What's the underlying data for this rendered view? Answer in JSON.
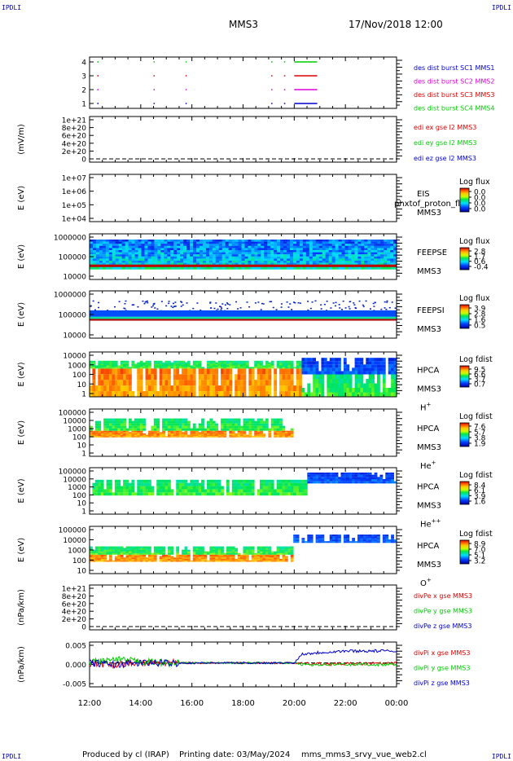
{
  "header": {
    "corner_label": "IPDLI",
    "spacecraft": "MMS3",
    "datetime": "17/Nov/2018 12:00"
  },
  "footer": {
    "producer": "Produced by cl (IRAP)",
    "printing": "Printing date: 03/May/2024",
    "script": "mms_mms3_srvy_vue_web2.cl"
  },
  "x_axis": {
    "ticks": [
      "12:00",
      "14:00",
      "16:00",
      "18:00",
      "20:00",
      "22:00",
      "00:00"
    ],
    "range_hours": [
      12,
      24
    ]
  },
  "colors": {
    "red": "#dd0000",
    "green": "#00cc00",
    "blue": "#0000cc",
    "magenta": "#dd00dd"
  },
  "panels": [
    {
      "id": "burst",
      "yticks": [
        "4",
        "3",
        "2",
        "1"
      ],
      "legend": [
        {
          "text": "des dist burst SC1 MMS1",
          "color": "#0000cc"
        },
        {
          "text": "des dist burst SC2 MMS2",
          "color": "#dd00dd"
        },
        {
          "text": "des dist burst SC3 MMS3",
          "color": "#dd0000"
        },
        {
          "text": "des dist burst SC4 MMS4",
          "color": "#00cc00"
        }
      ]
    },
    {
      "id": "edi",
      "ylabel": "(mV/m)",
      "yticks": [
        "1e+21",
        "8e+20",
        "6e+20",
        "4e+20",
        "2e+20",
        "0"
      ],
      "legend": [
        {
          "text": "edi ex gse l2 MMS3",
          "color": "#dd0000"
        },
        {
          "text": "edi ey gse l2 MMS3",
          "color": "#00cc00"
        },
        {
          "text": "edi ez gse l2 MMS3",
          "color": "#0000cc"
        }
      ]
    },
    {
      "id": "eis",
      "ylabel": "E (eV)",
      "yticks": [
        "1e+07",
        "1e+06",
        "1e+05",
        "1e+04"
      ],
      "inst": [
        "EIS",
        "MMS3"
      ],
      "overlay": "phxtof_proton_fl",
      "cb_title": "Log flux",
      "cb_ticks": [
        "0.0",
        "0.0",
        "0.0",
        "0.0"
      ]
    },
    {
      "id": "feeps_e",
      "ylabel": "E (eV)",
      "yticks": [
        "1000000",
        "100000",
        "10000"
      ],
      "inst": [
        "FEEPSE",
        "MMS3"
      ],
      "cb_title": "Log flux",
      "cb_ticks": [
        "2.8",
        "1.7",
        "0.6",
        "-0.4"
      ]
    },
    {
      "id": "feeps_i",
      "ylabel": "E (eV)",
      "yticks": [
        "1000000",
        "100000",
        "10000"
      ],
      "inst": [
        "FEEPSI",
        "MMS3"
      ],
      "cb_title": "Log flux",
      "cb_ticks": [
        "3.9",
        "2.8",
        "1.6",
        "0.5"
      ]
    },
    {
      "id": "hpca_h",
      "ylabel": "E (eV)",
      "yticks": [
        "10000",
        "1000",
        "100",
        "10",
        "1"
      ],
      "inst": [
        "HPCA",
        "MMS3"
      ],
      "species": "H",
      "species_sup": "+",
      "cb_title": "Log fdist",
      "cb_ticks": [
        "9.5",
        "6.6",
        "3.7",
        "0.7"
      ]
    },
    {
      "id": "hpca_he",
      "ylabel": "E (eV)",
      "yticks": [
        "100000",
        "10000",
        "1000",
        "100",
        "10",
        "1"
      ],
      "inst": [
        "HPCA",
        "MMS3"
      ],
      "species": "He",
      "species_sup": "+",
      "cb_title": "Log fdist",
      "cb_ticks": [
        "7.6",
        "5.7",
        "3.8",
        "1.9"
      ]
    },
    {
      "id": "hpca_hepp",
      "ylabel": "E (eV)",
      "yticks": [
        "100000",
        "10000",
        "1000",
        "100",
        "10",
        "1"
      ],
      "inst": [
        "HPCA",
        "MMS3"
      ],
      "species": "He",
      "species_sup": "++",
      "cb_title": "Log fdist",
      "cb_ticks": [
        "8.4",
        "6.1",
        "3.9",
        "1.6"
      ]
    },
    {
      "id": "hpca_o",
      "ylabel": "E (eV)",
      "yticks": [
        "100000",
        "10000",
        "1000",
        "100",
        "10"
      ],
      "inst": [
        "HPCA",
        "MMS3"
      ],
      "species": "O",
      "species_sup": "+",
      "cb_title": "Log fdist",
      "cb_ticks": [
        "8.9",
        "7.0",
        "5.1",
        "3.2"
      ]
    },
    {
      "id": "divpe",
      "ylabel": "(nPa/km)",
      "yticks": [
        "1e+21",
        "8e+20",
        "6e+20",
        "4e+20",
        "2e+20",
        "0"
      ],
      "legend": [
        {
          "text": "divPe x gse MMS3",
          "color": "#dd0000"
        },
        {
          "text": "divPe y gse MMS3",
          "color": "#00cc00"
        },
        {
          "text": "divPe z gse MMS3",
          "color": "#0000cc"
        }
      ]
    },
    {
      "id": "divpi",
      "ylabel": "(nPa/km)",
      "yticks": [
        "0.005",
        "0.000",
        "-0.005"
      ],
      "legend": [
        {
          "text": "divPi x gse MMS3",
          "color": "#dd0000"
        },
        {
          "text": "divPi y gse MMS3",
          "color": "#00cc00"
        },
        {
          "text": "divPi z gse MMS3",
          "color": "#0000cc"
        }
      ]
    }
  ],
  "chart_data": [
    {
      "type": "scatter",
      "title": "des dist burst",
      "ylim": [
        0.5,
        4.5
      ],
      "series": [
        {
          "name": "des dist burst SC1 MMS1",
          "y": 1,
          "segments": [
            [
              12.3,
              12.35
            ],
            [
              14.5,
              14.52
            ],
            [
              15.75,
              15.77
            ],
            [
              19.1,
              19.13
            ],
            [
              19.6,
              19.65
            ],
            [
              20.0,
              20.9
            ]
          ]
        },
        {
          "name": "des dist burst SC2 MMS2",
          "y": 2,
          "segments": [
            [
              12.3,
              12.35
            ],
            [
              14.5,
              14.52
            ],
            [
              15.75,
              15.77
            ],
            [
              19.1,
              19.13
            ],
            [
              19.6,
              19.65
            ],
            [
              20.0,
              20.9
            ]
          ]
        },
        {
          "name": "des dist burst SC3 MMS3",
          "y": 3,
          "segments": [
            [
              12.3,
              12.35
            ],
            [
              14.5,
              14.52
            ],
            [
              15.75,
              15.77
            ],
            [
              19.1,
              19.13
            ],
            [
              19.6,
              19.65
            ],
            [
              20.0,
              20.9
            ]
          ]
        },
        {
          "name": "des dist burst SC4 MMS4",
          "y": 4,
          "segments": [
            [
              12.3,
              12.35
            ],
            [
              14.5,
              14.52
            ],
            [
              15.75,
              15.77
            ],
            [
              19.1,
              19.13
            ],
            [
              19.6,
              19.65
            ],
            [
              20.0,
              20.9
            ]
          ]
        }
      ]
    },
    {
      "type": "line",
      "ylabel": "(mV/m)",
      "ylim": [
        0,
        1e+21
      ],
      "series": [
        {
          "name": "edi ex gse l2 MMS3",
          "values": []
        },
        {
          "name": "edi ey gse l2 MMS3",
          "values": []
        },
        {
          "name": "edi ez gse l2 MMS3",
          "values": []
        }
      ]
    },
    {
      "type": "heatmap",
      "ylabel": "E (eV)",
      "ylim": [
        10000,
        10000000
      ],
      "values": "empty"
    },
    {
      "type": "heatmap",
      "ylabel": "E (eV)",
      "ylim": [
        10000,
        1000000
      ],
      "bands": [
        {
          "from": 10000,
          "to": 12000,
          "level": "none"
        },
        {
          "from": 35000,
          "to": 45000,
          "level": "high"
        },
        {
          "from": 45000,
          "to": 80000,
          "level": "mid"
        },
        {
          "from": 80000,
          "to": 1000000,
          "level": "low"
        }
      ]
    },
    {
      "type": "heatmap",
      "ylabel": "E (eV)",
      "ylim": [
        10000,
        1000000
      ],
      "bands": [
        {
          "from": 55000,
          "to": 65000,
          "level": "high"
        },
        {
          "from": 65000,
          "to": 150000,
          "level": "mid"
        },
        {
          "from": 150000,
          "to": 400000,
          "level": "low"
        }
      ]
    },
    {
      "type": "heatmap",
      "ylabel": "E (eV)",
      "ylim": [
        1,
        40000
      ],
      "regions": [
        {
          "t": [
            12,
            20.3
          ],
          "e": [
            1,
            800
          ],
          "level": "high"
        },
        {
          "t": [
            12,
            20.3
          ],
          "e": [
            800,
            5000
          ],
          "level": "mid"
        },
        {
          "t": [
            20.3,
            24
          ],
          "e": [
            1,
            200
          ],
          "level": "mid"
        },
        {
          "t": [
            20.3,
            24
          ],
          "e": [
            200,
            10000
          ],
          "level": "low"
        }
      ]
    },
    {
      "type": "heatmap",
      "ylabel": "E (eV)",
      "ylim": [
        1,
        100000
      ],
      "regions": [
        {
          "t": [
            12,
            20.0
          ],
          "e": [
            100,
            500
          ],
          "level": "high"
        },
        {
          "t": [
            12,
            20.0
          ],
          "e": [
            500,
            10000
          ],
          "level": "mid"
        }
      ]
    },
    {
      "type": "heatmap",
      "ylabel": "E (eV)",
      "ylim": [
        1,
        100000
      ],
      "regions": [
        {
          "t": [
            12,
            20.5
          ],
          "e": [
            100,
            5000
          ],
          "level": "mid"
        },
        {
          "t": [
            20.5,
            24
          ],
          "e": [
            2000,
            30000
          ],
          "level": "low"
        }
      ]
    },
    {
      "type": "heatmap",
      "ylabel": "E (eV)",
      "ylim": [
        10,
        100000
      ],
      "regions": [
        {
          "t": [
            12,
            20.0
          ],
          "e": [
            100,
            400
          ],
          "level": "high"
        },
        {
          "t": [
            12,
            20.0
          ],
          "e": [
            400,
            2000
          ],
          "level": "mid"
        },
        {
          "t": [
            20.0,
            24
          ],
          "e": [
            4000,
            20000
          ],
          "level": "low"
        }
      ]
    },
    {
      "type": "line",
      "ylabel": "(nPa/km)",
      "ylim": [
        0,
        1e+21
      ],
      "series": [
        {
          "name": "divPe x gse MMS3",
          "values": []
        },
        {
          "name": "divPe y gse MMS3",
          "values": []
        },
        {
          "name": "divPe z gse MMS3",
          "values": []
        }
      ]
    },
    {
      "type": "line",
      "ylabel": "(nPa/km)",
      "ylim": [
        -0.008,
        0.007
      ],
      "x": [
        12,
        13,
        14,
        15,
        16,
        17,
        18,
        19,
        20,
        20.3,
        21,
        22,
        23,
        24
      ],
      "series": [
        {
          "name": "divPi x gse MMS3",
          "values": [
            0.0,
            -0.0005,
            0.0,
            0.0,
            0.0,
            0.0,
            0.0,
            0.0,
            0.0,
            -0.0003,
            -0.0003,
            -0.0003,
            -0.0002,
            -0.0002
          ]
        },
        {
          "name": "divPi y gse MMS3",
          "values": [
            0.0005,
            0.001,
            0.0005,
            0.0,
            0.0,
            0.0,
            0.0,
            0.0,
            0.0,
            -0.0005,
            -0.0005,
            -0.0005,
            -0.0005,
            -0.0005
          ]
        },
        {
          "name": "divPi z gse MMS3",
          "values": [
            0.0,
            -0.0005,
            0.0,
            0.0,
            0.0,
            0.0,
            0.0,
            0.0,
            0.0,
            0.003,
            0.0035,
            0.004,
            0.004,
            0.004
          ]
        }
      ]
    }
  ]
}
